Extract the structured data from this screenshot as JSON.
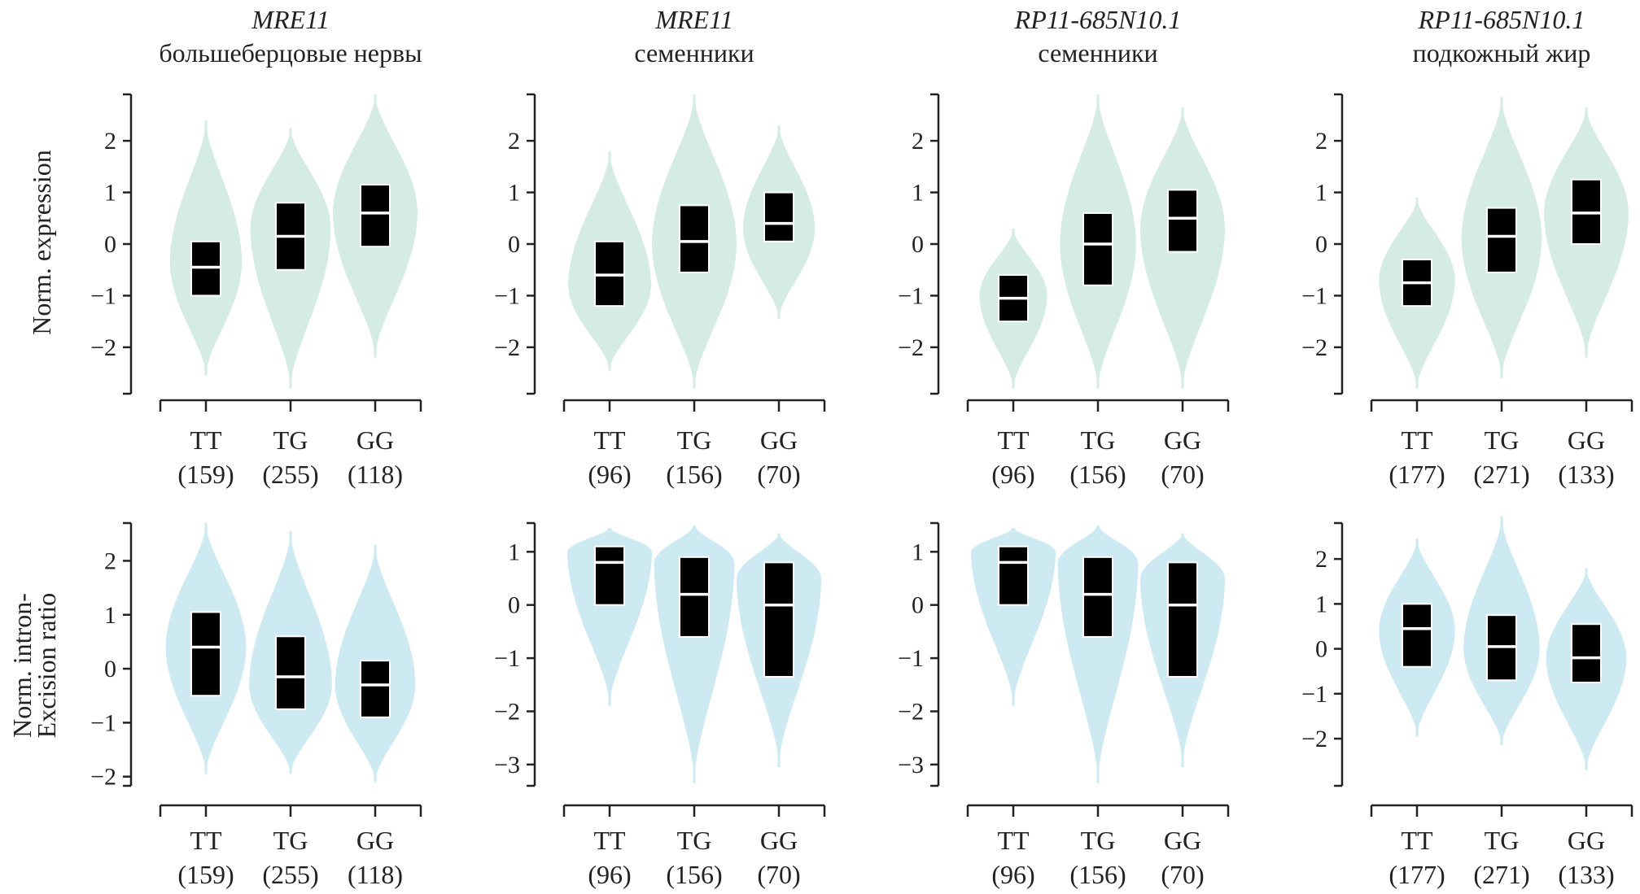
{
  "colors": {
    "top_violin": "#d4ece2",
    "bottom_violin": "#cdeaf3",
    "box": "#000000",
    "median": "#ffffff",
    "axis": "#222222"
  },
  "row_labels": {
    "top": [
      "Norm. expression"
    ],
    "bottom": [
      "Norm. intron-",
      "Excision ratio"
    ]
  },
  "chart_data": [
    {
      "type": "violin",
      "row": "top",
      "title": "MRE11",
      "subtitle": "большеберцовые нервы",
      "ylabel": "Norm. expression",
      "ylim": [
        -2.9,
        2.9
      ],
      "yticks": [
        -2,
        -1,
        0,
        1,
        2
      ],
      "categories": [
        "TT",
        "TG",
        "GG"
      ],
      "counts": [
        "(159)",
        "(255)",
        "(118)"
      ],
      "violins": [
        {
          "min": -2.55,
          "max": 2.4,
          "mode": -0.35,
          "width": 0.85,
          "q1": -1.0,
          "median": -0.45,
          "q3": 0.05
        },
        {
          "min": -2.8,
          "max": 2.25,
          "mode": 0.3,
          "width": 0.95,
          "q1": -0.5,
          "median": 0.15,
          "q3": 0.8
        },
        {
          "min": -2.2,
          "max": 2.9,
          "mode": 0.6,
          "width": 1.0,
          "q1": -0.05,
          "median": 0.6,
          "q3": 1.15
        }
      ]
    },
    {
      "type": "violin",
      "row": "top",
      "title": "MRE11",
      "subtitle": "семенники",
      "ylim": [
        -2.9,
        2.9
      ],
      "yticks": [
        -2,
        -1,
        0,
        1,
        2
      ],
      "categories": [
        "TT",
        "TG",
        "GG"
      ],
      "counts": [
        "(96)",
        "(156)",
        "(70)"
      ],
      "violins": [
        {
          "min": -2.45,
          "max": 1.8,
          "mode": -0.8,
          "width": 0.98,
          "q1": -1.2,
          "median": -0.6,
          "q3": 0.05
        },
        {
          "min": -2.8,
          "max": 2.9,
          "mode": 0.0,
          "width": 1.0,
          "q1": -0.55,
          "median": 0.05,
          "q3": 0.75
        },
        {
          "min": -1.45,
          "max": 2.3,
          "mode": 0.3,
          "width": 0.85,
          "q1": 0.05,
          "median": 0.4,
          "q3": 1.0
        }
      ]
    },
    {
      "type": "violin",
      "row": "top",
      "title": "RP11-685N10.1",
      "subtitle": "семенники",
      "ylim": [
        -2.9,
        2.9
      ],
      "yticks": [
        -2,
        -1,
        0,
        1,
        2
      ],
      "categories": [
        "TT",
        "TG",
        "GG"
      ],
      "counts": [
        "(96)",
        "(156)",
        "(70)"
      ],
      "violins": [
        {
          "min": -2.8,
          "max": 0.3,
          "mode": -1.0,
          "width": 0.8,
          "q1": -1.5,
          "median": -1.05,
          "q3": -0.6
        },
        {
          "min": -2.8,
          "max": 2.9,
          "mode": 0.0,
          "width": 0.9,
          "q1": -0.8,
          "median": 0.0,
          "q3": 0.6
        },
        {
          "min": -2.8,
          "max": 2.65,
          "mode": 0.3,
          "width": 1.0,
          "q1": -0.15,
          "median": 0.5,
          "q3": 1.05
        }
      ]
    },
    {
      "type": "violin",
      "row": "top",
      "title": "RP11-685N10.1",
      "subtitle": "подкожный жир",
      "ylim": [
        -2.9,
        2.9
      ],
      "yticks": [
        -2,
        -1,
        0,
        1,
        2
      ],
      "categories": [
        "TT",
        "TG",
        "GG"
      ],
      "counts": [
        "(177)",
        "(271)",
        "(133)"
      ],
      "violins": [
        {
          "min": -2.8,
          "max": 0.9,
          "mode": -0.7,
          "width": 0.9,
          "q1": -1.2,
          "median": -0.75,
          "q3": -0.3
        },
        {
          "min": -2.6,
          "max": 2.85,
          "mode": 0.1,
          "width": 0.95,
          "q1": -0.55,
          "median": 0.15,
          "q3": 0.7
        },
        {
          "min": -2.2,
          "max": 2.65,
          "mode": 0.6,
          "width": 1.0,
          "q1": 0.0,
          "median": 0.6,
          "q3": 1.25
        }
      ]
    },
    {
      "type": "violin",
      "row": "bottom",
      "ylabel": "Norm. intron- Excision ratio",
      "ylim": [
        -2.17,
        2.7
      ],
      "yticks": [
        -2,
        -1,
        0,
        1,
        2
      ],
      "categories": [
        "TT",
        "TG",
        "GG"
      ],
      "counts": [
        "(159)",
        "(255)",
        "(118)"
      ],
      "violins": [
        {
          "min": -1.95,
          "max": 2.7,
          "mode": 0.4,
          "width": 0.95,
          "q1": -0.5,
          "median": 0.4,
          "q3": 1.05
        },
        {
          "min": -1.95,
          "max": 2.55,
          "mode": -0.3,
          "width": 0.98,
          "q1": -0.75,
          "median": -0.15,
          "q3": 0.6
        },
        {
          "min": -2.1,
          "max": 2.3,
          "mode": -0.3,
          "width": 0.95,
          "q1": -0.9,
          "median": -0.3,
          "q3": 0.15
        }
      ]
    },
    {
      "type": "violin",
      "row": "bottom",
      "ylim": [
        -3.4,
        1.54
      ],
      "yticks": [
        -3,
        -2,
        -1,
        0,
        1
      ],
      "categories": [
        "TT",
        "TG",
        "GG"
      ],
      "counts": [
        "(96)",
        "(156)",
        "(70)"
      ],
      "violins": [
        {
          "min": -1.9,
          "max": 1.45,
          "mode": 1.0,
          "width": 1.0,
          "q1": 0.0,
          "median": 0.8,
          "q3": 1.1
        },
        {
          "min": -3.35,
          "max": 1.5,
          "mode": 0.8,
          "width": 0.95,
          "q1": -0.6,
          "median": 0.2,
          "q3": 0.9
        },
        {
          "min": -3.05,
          "max": 1.35,
          "mode": 0.5,
          "width": 1.0,
          "q1": -1.35,
          "median": 0.0,
          "q3": 0.8
        }
      ]
    },
    {
      "type": "violin",
      "row": "bottom",
      "ylim": [
        -3.4,
        1.54
      ],
      "yticks": [
        -3,
        -2,
        -1,
        0,
        1
      ],
      "categories": [
        "TT",
        "TG",
        "GG"
      ],
      "counts": [
        "(96)",
        "(156)",
        "(70)"
      ],
      "violins": [
        {
          "min": -1.9,
          "max": 1.45,
          "mode": 1.0,
          "width": 1.0,
          "q1": 0.0,
          "median": 0.8,
          "q3": 1.1
        },
        {
          "min": -3.35,
          "max": 1.5,
          "mode": 0.8,
          "width": 0.95,
          "q1": -0.6,
          "median": 0.2,
          "q3": 0.9
        },
        {
          "min": -3.05,
          "max": 1.35,
          "mode": 0.5,
          "width": 1.0,
          "q1": -1.35,
          "median": 0.0,
          "q3": 0.8
        }
      ]
    },
    {
      "type": "violin",
      "row": "bottom",
      "ylim": [
        -3.05,
        2.8
      ],
      "yticks": [
        -2,
        -1,
        0,
        1,
        2
      ],
      "categories": [
        "TT",
        "TG",
        "GG"
      ],
      "counts": [
        "(177)",
        "(271)",
        "(133)"
      ],
      "violins": [
        {
          "min": -1.95,
          "max": 2.45,
          "mode": 0.4,
          "width": 0.9,
          "q1": -0.4,
          "median": 0.45,
          "q3": 1.0
        },
        {
          "min": -2.15,
          "max": 2.95,
          "mode": 0.0,
          "width": 0.9,
          "q1": -0.7,
          "median": 0.05,
          "q3": 0.75
        },
        {
          "min": -2.7,
          "max": 1.8,
          "mode": -0.2,
          "width": 0.95,
          "q1": -0.75,
          "median": -0.2,
          "q3": 0.55
        }
      ]
    }
  ]
}
